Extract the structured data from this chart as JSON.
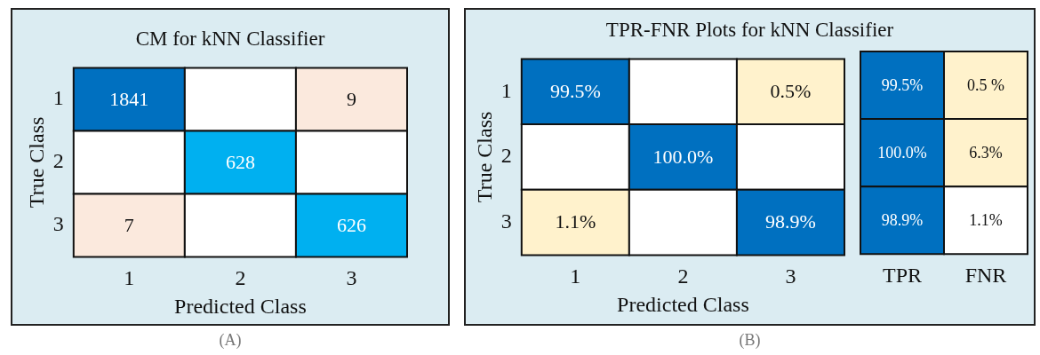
{
  "chart_data": [
    {
      "type": "heatmap",
      "title": "CM for kNN Classifier",
      "xlabel": "Predicted Class",
      "ylabel": "True Class",
      "categories": [
        "1",
        "2",
        "3"
      ],
      "y_categories": [
        "1",
        "2",
        "3"
      ],
      "cells": [
        [
          1841,
          null,
          9
        ],
        [
          null,
          628,
          null
        ],
        [
          7,
          null,
          626
        ]
      ],
      "colors": [
        [
          "#0070c0",
          null,
          "#fbe9dd"
        ],
        [
          null,
          "#00b0f0",
          null
        ],
        [
          "#fbe9dd",
          null,
          "#00b0f0"
        ]
      ],
      "data_labels": true,
      "annotations": [
        "(A)"
      ]
    },
    {
      "type": "heatmap",
      "title": "TPR-FNR Plots for kNN Classifier",
      "xlabel": "Predicted Class",
      "ylabel": "True Class",
      "categories": [
        "1",
        "2",
        "3"
      ],
      "y_categories": [
        "1",
        "2",
        "3"
      ],
      "cells": [
        [
          99.5,
          null,
          0.5
        ],
        [
          null,
          100.0,
          null
        ],
        [
          1.1,
          null,
          98.9
        ]
      ],
      "cell_labels": [
        [
          "99.5%",
          null,
          "0.5%"
        ],
        [
          null,
          "100.0%",
          null
        ],
        [
          "1.1%",
          null,
          "98.9%"
        ]
      ],
      "colors": [
        [
          "#0070c0",
          null,
          "#fff2cc"
        ],
        [
          null,
          "#0070c0",
          null
        ],
        [
          "#fff2cc",
          null,
          "#0070c0"
        ]
      ],
      "data_labels": true,
      "annotations": [
        "(B)"
      ]
    },
    {
      "type": "heatmap",
      "categories": [
        "TPR",
        "FNR"
      ],
      "y_categories": [
        null,
        null,
        null
      ],
      "cells": [
        [
          99.5,
          0.5
        ],
        [
          100.0,
          6.3
        ],
        [
          98.9,
          1.1
        ]
      ],
      "cell_labels": [
        [
          "99.5%",
          "0.5 %"
        ],
        [
          "100.0%",
          "6.3%"
        ],
        [
          "98.9%",
          "1.1%"
        ]
      ],
      "colors": [
        [
          "#0070c0",
          "#fff2cc"
        ],
        [
          "#0070c0",
          "#fff2cc"
        ],
        [
          "#0070c0",
          null
        ]
      ],
      "data_labels": true,
      "tick_labels": "x"
    }
  ]
}
